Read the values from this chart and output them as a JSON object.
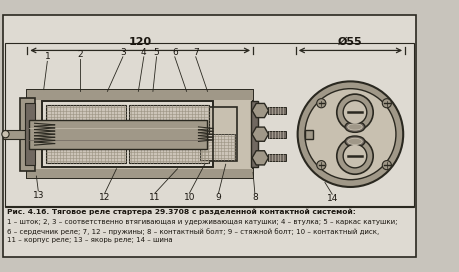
{
  "bg_color": "#c8c4bc",
  "paper_color": "#dedad2",
  "line_color": "#2a2820",
  "dark_gray": "#706860",
  "med_gray": "#a09888",
  "light_gray": "#c8c0b0",
  "very_light": "#ddd8ce",
  "hatch_color": "#989080",
  "text_color": "#1a1610",
  "title_line1": "Рис. 4.16. Тяговое реле стартера 29.3708 с разделенной контактной системой:",
  "title_line2": "1 – шток; 2, 3 – соответственно втягивающая и удерживающая катушки; 4 – втулка; 5 – каркас катушки;",
  "title_line3": "6 – сердечник реле; 7, 12 – пружины; 8 – контактный болт; 9 – стяжной болт; 10 – контактный диск,",
  "title_line4": "11 – корпус реле; 13 – якорь реле; 14 – шина",
  "dim_120": "120",
  "dim_55": "Ø55",
  "label_14": "14"
}
